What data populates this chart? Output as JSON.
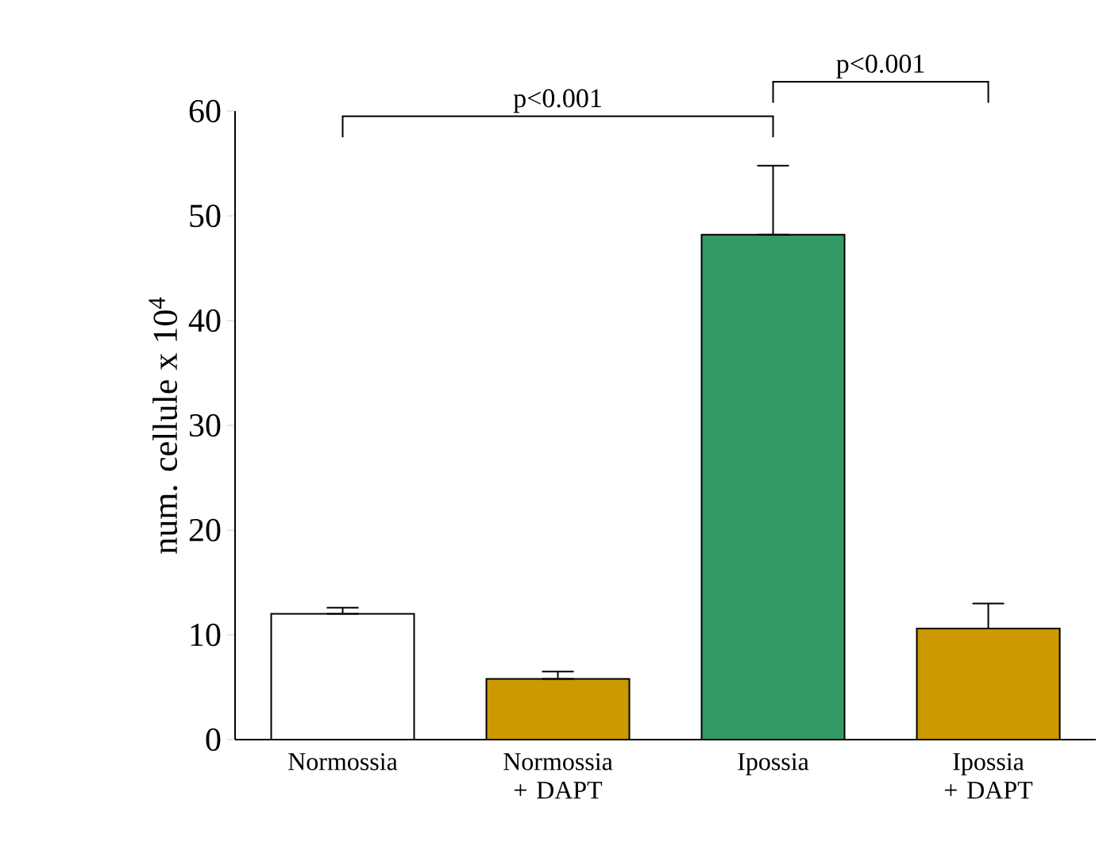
{
  "chart_data": {
    "type": "bar",
    "ylabel": "num. cellule x 10$^{4}$",
    "categories": [
      "Normossia",
      "Normossia + DAPT",
      "Ipossia",
      "Ipossia + DAPT"
    ],
    "values": [
      12.0,
      5.8,
      48.2,
      10.6
    ],
    "colors": [
      "#ffffff",
      "#cc9900",
      "#339966",
      "#cc9900"
    ],
    "errors": [
      [
        12.0,
        12.6
      ],
      [
        5.8,
        6.5
      ],
      [
        48.2,
        54.8
      ],
      [
        10.6,
        13.0
      ]
    ],
    "ylim": [
      0,
      60
    ],
    "yticks": [
      0,
      10,
      20,
      30,
      40,
      50,
      60
    ],
    "grid": false,
    "annotations": [
      "p<0.001",
      "p<0.001"
    ]
  }
}
